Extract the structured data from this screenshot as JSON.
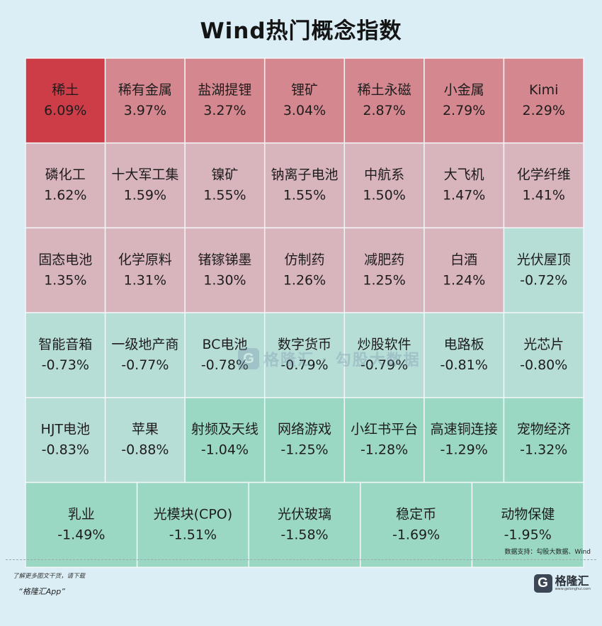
{
  "title": "Wind热门概念指数",
  "source": "数据支持：勾股大数据、Wind",
  "promo": {
    "line1": "了解更多图文干货，请下载",
    "line2": "“格隆汇App”"
  },
  "logo": {
    "mark": "G",
    "name": "格隆汇",
    "url": "www.gelonghui.com"
  },
  "watermark": {
    "mark": "G",
    "text": "格隆汇 · 勾股大数据"
  },
  "colors": {
    "strong_up": "#cc3d48",
    "up": "#d5878f",
    "mild_up": "#d8b4bc",
    "mild_down": "#b7ddd7",
    "down": "#9bd8c4"
  },
  "chart_data": {
    "type": "heatmap",
    "title": "Wind热门概念指数",
    "unit": "%",
    "rows": [
      {
        "cells": [
          {
            "name": "稀土",
            "value": 6.09,
            "label": "6.09%",
            "color": "#cc3d48"
          },
          {
            "name": "稀有金属",
            "value": 3.97,
            "label": "3.97%",
            "color": "#d5878f"
          },
          {
            "name": "盐湖提锂",
            "value": 3.27,
            "label": "3.27%",
            "color": "#d5878f"
          },
          {
            "name": "锂矿",
            "value": 3.04,
            "label": "3.04%",
            "color": "#d5878f"
          },
          {
            "name": "稀土永磁",
            "value": 2.87,
            "label": "2.87%",
            "color": "#d5878f"
          },
          {
            "name": "小金属",
            "value": 2.79,
            "label": "2.79%",
            "color": "#d5878f"
          },
          {
            "name": "Kimi",
            "value": 2.29,
            "label": "2.29%",
            "color": "#d5878f"
          }
        ]
      },
      {
        "cells": [
          {
            "name": "磷化工",
            "value": 1.62,
            "label": "1.62%",
            "color": "#d8b4bc"
          },
          {
            "name": "十大军工集",
            "value": 1.59,
            "label": "1.59%",
            "color": "#d8b4bc"
          },
          {
            "name": "镍矿",
            "value": 1.55,
            "label": "1.55%",
            "color": "#d8b4bc"
          },
          {
            "name": "钠离子电池",
            "value": 1.55,
            "label": "1.55%",
            "color": "#d8b4bc"
          },
          {
            "name": "中航系",
            "value": 1.5,
            "label": "1.50%",
            "color": "#d8b4bc"
          },
          {
            "name": "大飞机",
            "value": 1.47,
            "label": "1.47%",
            "color": "#d8b4bc"
          },
          {
            "name": "化学纤维",
            "value": 1.41,
            "label": "1.41%",
            "color": "#d8b4bc"
          }
        ]
      },
      {
        "cells": [
          {
            "name": "固态电池",
            "value": 1.35,
            "label": "1.35%",
            "color": "#d8b4bc"
          },
          {
            "name": "化学原料",
            "value": 1.31,
            "label": "1.31%",
            "color": "#d8b4bc"
          },
          {
            "name": "锗镓锑墨",
            "value": 1.3,
            "label": "1.30%",
            "color": "#d8b4bc"
          },
          {
            "name": "仿制药",
            "value": 1.26,
            "label": "1.26%",
            "color": "#d8b4bc"
          },
          {
            "name": "减肥药",
            "value": 1.25,
            "label": "1.25%",
            "color": "#d8b4bc"
          },
          {
            "name": "白酒",
            "value": 1.24,
            "label": "1.24%",
            "color": "#d8b4bc"
          },
          {
            "name": "光伏屋顶",
            "value": -0.72,
            "label": "-0.72%",
            "color": "#b7ddd7"
          }
        ]
      },
      {
        "cells": [
          {
            "name": "智能音箱",
            "value": -0.73,
            "label": "-0.73%",
            "color": "#b7ddd7"
          },
          {
            "name": "一级地产商",
            "value": -0.77,
            "label": "-0.77%",
            "color": "#b7ddd7"
          },
          {
            "name": "BC电池",
            "value": -0.78,
            "label": "-0.78%",
            "color": "#b7ddd7"
          },
          {
            "name": "数字货币",
            "value": -0.79,
            "label": "-0.79%",
            "color": "#b7ddd7"
          },
          {
            "name": "炒股软件",
            "value": -0.79,
            "label": "-0.79%",
            "color": "#b7ddd7"
          },
          {
            "name": "电路板",
            "value": -0.81,
            "label": "-0.81%",
            "color": "#b7ddd7"
          },
          {
            "name": "光芯片",
            "value": -0.8,
            "label": "-0.80%",
            "color": "#b7ddd7"
          }
        ]
      },
      {
        "cells": [
          {
            "name": "HJT电池",
            "value": -0.83,
            "label": "-0.83%",
            "color": "#b7ddd7"
          },
          {
            "name": "苹果",
            "value": -0.88,
            "label": "-0.88%",
            "color": "#b7ddd7"
          },
          {
            "name": "射频及天线",
            "value": -1.04,
            "label": "-1.04%",
            "color": "#9bd8c4"
          },
          {
            "name": "网络游戏",
            "value": -1.25,
            "label": "-1.25%",
            "color": "#9bd8c4"
          },
          {
            "name": "小红书平台",
            "value": -1.28,
            "label": "-1.28%",
            "color": "#9bd8c4"
          },
          {
            "name": "高速铜连接",
            "value": -1.29,
            "label": "-1.29%",
            "color": "#9bd8c4"
          },
          {
            "name": "宠物经济",
            "value": -1.32,
            "label": "-1.32%",
            "color": "#9bd8c4"
          }
        ]
      },
      {
        "cells": [
          {
            "name": "乳业",
            "value": -1.49,
            "label": "-1.49%",
            "color": "#9bd8c4"
          },
          {
            "name": "光模块(CPO)",
            "value": -1.51,
            "label": "-1.51%",
            "color": "#9bd8c4"
          },
          {
            "name": "光伏玻璃",
            "value": -1.58,
            "label": "-1.58%",
            "color": "#9bd8c4"
          },
          {
            "name": "稳定币",
            "value": -1.69,
            "label": "-1.69%",
            "color": "#9bd8c4"
          },
          {
            "name": "动物保健",
            "value": -1.95,
            "label": "-1.95%",
            "color": "#9bd8c4"
          }
        ]
      }
    ]
  }
}
